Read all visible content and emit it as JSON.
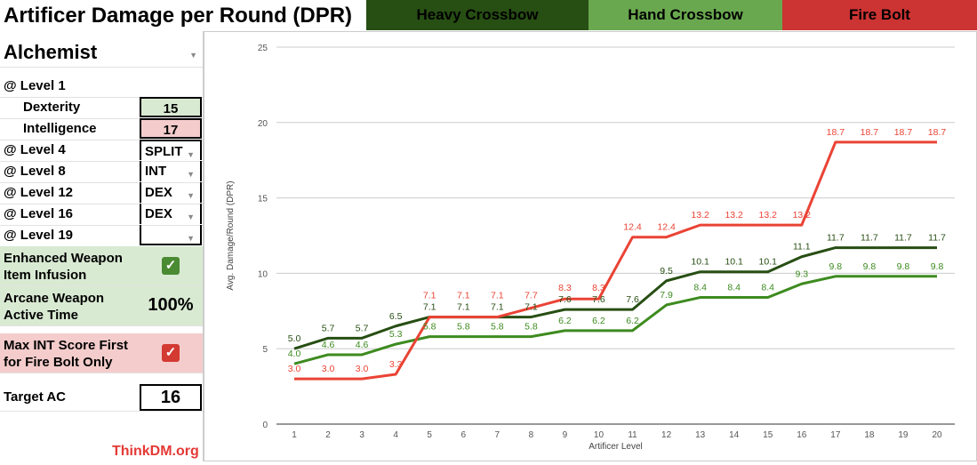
{
  "title": "Artificer Damage per Round (DPR)",
  "legend": [
    {
      "label": "Heavy Crossbow",
      "color": "#274e13"
    },
    {
      "label": "Hand Crossbow",
      "color": "#6aa84f"
    },
    {
      "label": "Fire Bolt",
      "color": "#cc3333"
    }
  ],
  "left": {
    "subclass": "Alchemist",
    "level1": "@ Level 1",
    "dex_label": "Dexterity",
    "dex_value": "15",
    "int_label": "Intelligence",
    "int_value": "17",
    "asi": [
      {
        "label": "@ Level 4",
        "value": "SPLIT"
      },
      {
        "label": "@ Level 8",
        "value": "INT"
      },
      {
        "label": "@ Level 12",
        "value": "DEX"
      },
      {
        "label": "@ Level 16",
        "value": "DEX"
      },
      {
        "label": "@ Level 19",
        "value": ""
      }
    ],
    "enhanced_label_1": "Enhanced Weapon",
    "enhanced_label_2": "Item Infusion",
    "enhanced_checked": true,
    "arcane_label_1": "Arcane Weapon",
    "arcane_label_2": "Active Time",
    "arcane_value": "100%",
    "maxint_label_1": "Max INT Score First",
    "maxint_label_2": "for Fire Bolt Only",
    "maxint_checked": true,
    "ac_label": "Target AC",
    "ac_value": "16",
    "credit": "ThinkDM.org"
  },
  "chart_data": {
    "type": "line",
    "xlabel": "Artificer Level",
    "ylabel": "Avg. Damage/Round (DPR)",
    "ylim": [
      0,
      25
    ],
    "yticks": [
      0,
      5,
      10,
      15,
      20,
      25
    ],
    "x": [
      1,
      2,
      3,
      4,
      5,
      6,
      7,
      8,
      9,
      10,
      11,
      12,
      13,
      14,
      15,
      16,
      17,
      18,
      19,
      20
    ],
    "grid": true,
    "series": [
      {
        "name": "Heavy Crossbow",
        "color": "#274e13",
        "values": [
          5.0,
          5.7,
          5.7,
          6.5,
          7.1,
          7.1,
          7.1,
          7.1,
          7.6,
          7.6,
          7.6,
          9.5,
          10.1,
          10.1,
          10.1,
          11.1,
          11.7,
          11.7,
          11.7,
          11.7
        ]
      },
      {
        "name": "Hand Crossbow",
        "color": "#3d8b1f",
        "values": [
          4.0,
          4.6,
          4.6,
          5.3,
          5.8,
          5.8,
          5.8,
          5.8,
          6.2,
          6.2,
          6.2,
          7.9,
          8.4,
          8.4,
          8.4,
          9.3,
          9.8,
          9.8,
          9.8,
          9.8
        ]
      },
      {
        "name": "Fire Bolt",
        "color": "#ea4335",
        "values": [
          3.0,
          3.0,
          3.0,
          3.3,
          7.1,
          7.1,
          7.1,
          7.7,
          8.3,
          8.3,
          12.4,
          12.4,
          13.2,
          13.2,
          13.2,
          13.2,
          18.7,
          18.7,
          18.7,
          18.7
        ]
      }
    ]
  }
}
